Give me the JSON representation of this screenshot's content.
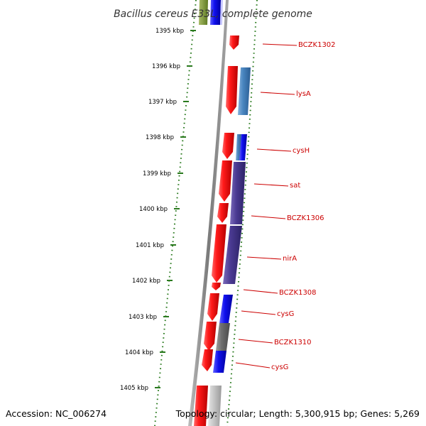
{
  "title": "Bacillus cereus E33L, complete genome",
  "footer": {
    "accession": "Accession: NC_006274",
    "summary": "Topology: circular; Length: 5,300,915 bp; Genes: 5,269"
  },
  "colors": {
    "forward_gene": "#ee1111",
    "kbp_ticks": "#2a7a1e",
    "gene_label": "#cc0000",
    "backbone": "#888888"
  },
  "kbp_ticks": [
    "1395 kbp",
    "1396 kbp",
    "1397 kbp",
    "1398 kbp",
    "1399 kbp",
    "1400 kbp",
    "1401 kbp",
    "1402 kbp",
    "1403 kbp",
    "1404 kbp",
    "1405 kbp"
  ],
  "gene_labels": [
    "BCZK1302",
    "lysA",
    "cysH",
    "sat",
    "BCZK1306",
    "nirA",
    "BCZK1308",
    "cysG",
    "BCZK1310",
    "cysG"
  ]
}
